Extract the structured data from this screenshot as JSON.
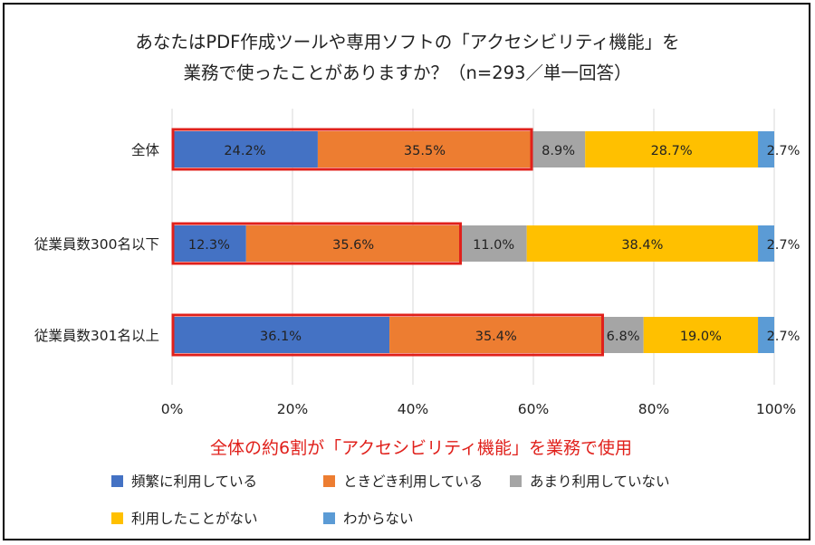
{
  "chart_data": {
    "type": "bar",
    "orientation": "horizontal",
    "stacked": true,
    "title": [
      "あなたはPDF作成ツールや専用ソフトの「アクセシビリティ機能」を",
      "業務で使ったことがありますか？（n=293／単一回答）"
    ],
    "categories": [
      "全体",
      "従業員数300名以下",
      "従業員数301名以上"
    ],
    "series": [
      {
        "name": "頻繁に利用している",
        "color": "#4472c4",
        "values": [
          24.2,
          12.3,
          36.1
        ],
        "labels": [
          "24.2%",
          "12.3%",
          "36.1%"
        ]
      },
      {
        "name": "ときどき利用している",
        "color": "#ed7d31",
        "values": [
          35.5,
          35.6,
          35.4
        ],
        "labels": [
          "35.5%",
          "35.6%",
          "35.4%"
        ]
      },
      {
        "name": "あまり利用していない",
        "color": "#a5a5a5",
        "values": [
          8.9,
          11.0,
          6.8
        ],
        "labels": [
          "8.9%",
          "11.0%",
          "6.8%"
        ]
      },
      {
        "name": "利用したことがない",
        "color": "#ffc000",
        "values": [
          28.7,
          38.4,
          19.0
        ],
        "labels": [
          "28.7%",
          "38.4%",
          "19.0%"
        ]
      },
      {
        "name": "わからない",
        "color": "#5b9bd5",
        "values": [
          2.7,
          2.7,
          2.7
        ],
        "labels": [
          "2.7%",
          "2.7%",
          "2.7%"
        ]
      }
    ],
    "xlim": [
      0,
      100
    ],
    "xticks": [
      0,
      20,
      40,
      60,
      80,
      100
    ],
    "xtick_labels": [
      "0%",
      "20%",
      "40%",
      "60%",
      "80%",
      "100%"
    ],
    "grid": true,
    "legend_position": "bottom",
    "highlight_color": "#e0201b",
    "annotation": "全体の約6割が「アクセシビリティ機能」を業務で使用"
  }
}
